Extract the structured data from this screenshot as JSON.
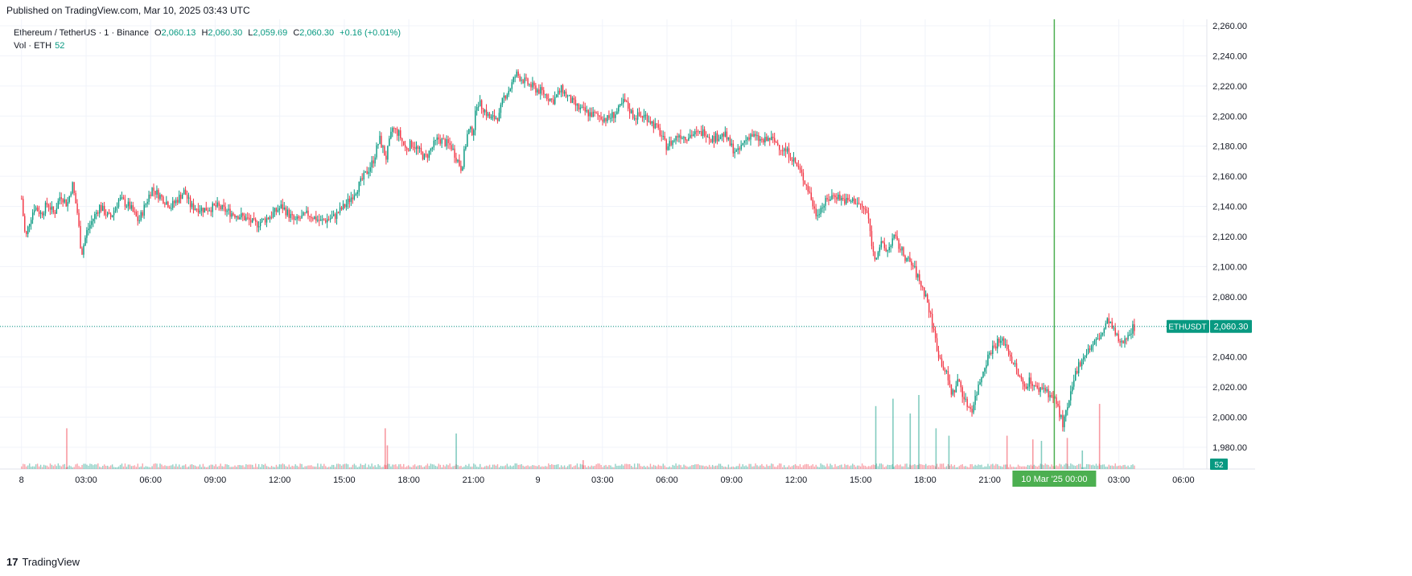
{
  "header": {
    "published": "Published on TradingView.com, Mar 10, 2025 03:43 UTC"
  },
  "legend": {
    "symbol": "Ethereum / TetherUS · 1 · Binance",
    "open_label": "O",
    "open": "2,060.13",
    "high_label": "H",
    "high": "2,060.30",
    "low_label": "L",
    "low": "2,059.69",
    "close_label": "C",
    "close": "2,060.30",
    "change": "+0.16 (+0.01%)",
    "vol_label": "Vol · ETH",
    "vol_value": "52"
  },
  "footer": {
    "brand": "TradingView",
    "logo": "17"
  },
  "colors": {
    "up": "#089981",
    "down": "#f23645",
    "crosshair": "#22ab94",
    "grid": "#f0f3fa",
    "highlight": "#4caf50"
  },
  "chart_data": {
    "type": "candlestick",
    "symbol": "ETHUSDT",
    "timeframe": "1",
    "ylim": [
      1970,
      2262
    ],
    "y_ticks": [
      "2,260.00",
      "2,240.00",
      "2,220.00",
      "2,200.00",
      "2,180.00",
      "2,160.00",
      "2,140.00",
      "2,120.00",
      "2,100.00",
      "2,080.00",
      "2,060.00",
      "2,040.00",
      "2,020.00",
      "2,000.00",
      "1,980.00"
    ],
    "y_tick_values": [
      2260,
      2240,
      2220,
      2200,
      2180,
      2160,
      2140,
      2120,
      2100,
      2080,
      2060,
      2040,
      2020,
      2000,
      1980
    ],
    "x_ticks": [
      "8",
      "03:00",
      "06:00",
      "09:00",
      "12:00",
      "15:00",
      "18:00",
      "21:00",
      "9",
      "03:00",
      "06:00",
      "09:00",
      "12:00",
      "15:00",
      "18:00",
      "21:00",
      "03:00",
      "06:00"
    ],
    "x_tick_hours": [
      0,
      3,
      6,
      9,
      12,
      15,
      18,
      21,
      24,
      27,
      30,
      33,
      36,
      39,
      42,
      45,
      51,
      54
    ],
    "x_range_hours": [
      -1,
      55
    ],
    "data_end_hour": 51.72,
    "last_price": 2060.3,
    "last_price_label": "2,060.30",
    "symbol_tag": "ETHUSDT",
    "volume_last": "52",
    "crosshair_label": "10 Mar '25   00:00",
    "crosshair_hour": 48,
    "price_path": [
      [
        0,
        2145
      ],
      [
        0.3,
        2118
      ],
      [
        0.6,
        2130
      ],
      [
        1,
        2140
      ],
      [
        1.5,
        2135
      ],
      [
        2,
        2142
      ],
      [
        2.5,
        2135
      ],
      [
        3,
        2148
      ],
      [
        3.5,
        2141
      ],
      [
        3.9,
        2155
      ],
      [
        4.3,
        2135
      ],
      [
        4.6,
        2108
      ],
      [
        5,
        2123
      ],
      [
        5.5,
        2132
      ],
      [
        6,
        2140
      ],
      [
        6.8,
        2132
      ],
      [
        7.5,
        2145
      ],
      [
        8.3,
        2140
      ],
      [
        9,
        2130
      ],
      [
        10,
        2152
      ],
      [
        11.5,
        2140
      ],
      [
        12.5,
        2150
      ],
      [
        13,
        2140
      ],
      [
        14,
        2138
      ],
      [
        15,
        2140
      ],
      [
        16,
        2136
      ],
      [
        17,
        2133
      ],
      [
        18,
        2128
      ],
      [
        19,
        2133
      ],
      [
        20,
        2140
      ],
      [
        21,
        2130
      ],
      [
        22,
        2135
      ],
      [
        23,
        2130
      ],
      [
        24,
        2133
      ],
      [
        25,
        2142
      ],
      [
        26,
        2155
      ],
      [
        27,
        2170
      ],
      [
        27.5,
        2185
      ],
      [
        28,
        2172
      ],
      [
        28.5,
        2192
      ],
      [
        29,
        2188
      ],
      [
        29.5,
        2178
      ],
      [
        30,
        2182
      ],
      [
        31,
        2172
      ],
      [
        32,
        2185
      ],
      [
        33,
        2180
      ],
      [
        33.8,
        2165
      ],
      [
        34.3,
        2190
      ],
      [
        34.7,
        2190
      ],
      [
        35,
        2210
      ],
      [
        35.5,
        2205
      ],
      [
        36,
        2198
      ],
      [
        36.7,
        2200
      ],
      [
        37,
        2212
      ],
      [
        37.5,
        2218
      ],
      [
        38,
        2228
      ],
      [
        38.8,
        2222
      ],
      [
        39.5,
        2218
      ],
      [
        40,
        2216
      ],
      [
        40.8,
        2210
      ],
      [
        41.5,
        2218
      ],
      [
        42,
        2212
      ],
      [
        42.8,
        2205
      ],
      [
        43.5,
        2202
      ],
      [
        44.3,
        2200
      ],
      [
        45,
        2198
      ],
      [
        45.8,
        2203
      ],
      [
        46.3,
        2210
      ],
      [
        47,
        2200
      ],
      [
        47.5,
        2200
      ],
      [
        48,
        2200
      ],
      [
        48.5,
        2195
      ],
      [
        49,
        2190
      ],
      [
        49.5,
        2180
      ],
      [
        50,
        2183
      ],
      [
        50.5,
        2188
      ],
      [
        51,
        2186
      ],
      [
        51.5,
        2188
      ],
      [
        52,
        2188
      ],
      [
        52.5,
        2190
      ],
      [
        53,
        2185
      ],
      [
        54,
        2188
      ],
      [
        54.5,
        2180
      ],
      [
        55,
        2175
      ],
      [
        55.5,
        2183
      ],
      [
        56,
        2188
      ],
      [
        56.5,
        2185
      ],
      [
        57,
        2183
      ],
      [
        57.5,
        2185
      ],
      [
        58,
        2182
      ],
      [
        58.5,
        2178
      ],
      [
        59,
        2175
      ],
      [
        59.5,
        2168
      ],
      [
        60,
        2160
      ],
      [
        60.5,
        2150
      ],
      [
        61,
        2135
      ],
      [
        61.5,
        2140
      ],
      [
        62,
        2145
      ],
      [
        62.5,
        2148
      ],
      [
        63,
        2145
      ],
      [
        63.5,
        2143
      ],
      [
        64,
        2144
      ],
      [
        64.5,
        2140
      ],
      [
        65,
        2135
      ],
      [
        65.5,
        2105
      ],
      [
        66,
        2115
      ],
      [
        66.5,
        2110
      ],
      [
        67,
        2120
      ],
      [
        67.5,
        2112
      ],
      [
        68,
        2105
      ],
      [
        68.5,
        2100
      ],
      [
        69,
        2090
      ],
      [
        69.5,
        2080
      ],
      [
        70,
        2060
      ],
      [
        70.5,
        2040
      ],
      [
        71,
        2030
      ],
      [
        71.5,
        2015
      ],
      [
        72,
        2025
      ],
      [
        72.5,
        2010
      ],
      [
        73,
        2005
      ],
      [
        73.5,
        2020
      ],
      [
        74,
        2035
      ],
      [
        74.5,
        2045
      ],
      [
        75,
        2050
      ],
      [
        75.5,
        2050
      ],
      [
        76,
        2040
      ],
      [
        76.5,
        2030
      ],
      [
        77,
        2020
      ],
      [
        77.5,
        2025
      ],
      [
        78,
        2018
      ],
      [
        78.5,
        2020
      ],
      [
        79,
        2015
      ],
      [
        79.5,
        2010
      ],
      [
        80,
        1995
      ],
      [
        80.5,
        2010
      ],
      [
        81,
        2030
      ],
      [
        81.5,
        2040
      ],
      [
        82,
        2045
      ],
      [
        82.5,
        2050
      ],
      [
        83,
        2055
      ],
      [
        83.5,
        2065
      ],
      [
        84,
        2055
      ],
      [
        84.5,
        2048
      ],
      [
        85,
        2056
      ],
      [
        85.5,
        2060
      ]
    ],
    "path_scale_note": "x in path units mapping 0..85.5 -> hours 0..51.72",
    "volume_spikes": [
      {
        "h": 2.1,
        "v": 0.55
      },
      {
        "h": 16.9,
        "v": 0.55
      },
      {
        "h": 17.0,
        "v": 0.32
      },
      {
        "h": 20.2,
        "v": 0.48
      },
      {
        "h": 26.1,
        "v": 0.12
      },
      {
        "h": 39.7,
        "v": 0.85
      },
      {
        "h": 40.5,
        "v": 0.95
      },
      {
        "h": 41.3,
        "v": 0.75
      },
      {
        "h": 41.7,
        "v": 1.0
      },
      {
        "h": 42.5,
        "v": 0.55
      },
      {
        "h": 43.1,
        "v": 0.45
      },
      {
        "h": 45.8,
        "v": 0.45
      },
      {
        "h": 47.0,
        "v": 0.4
      },
      {
        "h": 47.4,
        "v": 0.38
      },
      {
        "h": 48.6,
        "v": 0.42
      },
      {
        "h": 49.3,
        "v": 0.25
      },
      {
        "h": 50.1,
        "v": 0.88
      }
    ]
  }
}
